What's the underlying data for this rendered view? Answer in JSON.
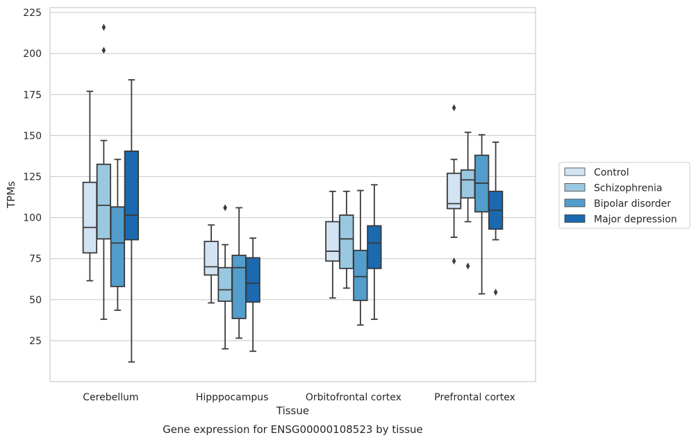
{
  "chart_data": {
    "type": "box",
    "title": "",
    "caption": "Gene expression for ENSG00000108523 by tissue",
    "xlabel": "Tissue",
    "ylabel": "TPMs",
    "ylim": [
      0,
      228
    ],
    "yticks": [
      25,
      50,
      75,
      100,
      125,
      150,
      175,
      200,
      225
    ],
    "grid": "horizontal",
    "legend_position": "right",
    "categories": [
      "Cerebellum",
      "Hipppocampus",
      "Orbitofrontal cortex",
      "Prefrontal cortex"
    ],
    "series": [
      {
        "name": "Control",
        "color": "#d2e3f3",
        "boxes": [
          {
            "whislo": 61.5,
            "q1": 78.5,
            "med": 94,
            "q3": 121.5,
            "whishi": 177,
            "fliers": []
          },
          {
            "whislo": 48,
            "q1": 65,
            "med": 70,
            "q3": 85.5,
            "whishi": 95.5,
            "fliers": []
          },
          {
            "whislo": 51,
            "q1": 73.5,
            "med": 79.5,
            "q3": 97.5,
            "whishi": 116,
            "fliers": []
          },
          {
            "whislo": 88,
            "q1": 105.5,
            "med": 108.5,
            "q3": 127,
            "whishi": 135.5,
            "fliers": [
              167,
              73.5
            ]
          }
        ]
      },
      {
        "name": "Schizophrenia",
        "color": "#9ac8e0",
        "boxes": [
          {
            "whislo": 38,
            "q1": 87,
            "med": 107.5,
            "q3": 132.5,
            "whishi": 147,
            "fliers": [
              216,
              202
            ]
          },
          {
            "whislo": 20,
            "q1": 49,
            "med": 56,
            "q3": 69.5,
            "whishi": 83.5,
            "fliers": [
              106
            ]
          },
          {
            "whislo": 57,
            "q1": 69,
            "med": 87,
            "q3": 101.5,
            "whishi": 116,
            "fliers": []
          },
          {
            "whislo": 97.5,
            "q1": 112,
            "med": 123,
            "q3": 129,
            "whishi": 152,
            "fliers": [
              70.5
            ]
          }
        ]
      },
      {
        "name": "Bipolar disorder",
        "color": "#529dcc",
        "boxes": [
          {
            "whislo": 43.5,
            "q1": 58,
            "med": 84.5,
            "q3": 106.5,
            "whishi": 135.5,
            "fliers": []
          },
          {
            "whislo": 26.5,
            "q1": 38.5,
            "med": 69.5,
            "q3": 77,
            "whishi": 106,
            "fliers": []
          },
          {
            "whislo": 34.5,
            "q1": 49.5,
            "med": 64,
            "q3": 80,
            "whishi": 116.5,
            "fliers": []
          },
          {
            "whislo": 53.5,
            "q1": 103.5,
            "med": 121,
            "q3": 138,
            "whishi": 150.5,
            "fliers": []
          }
        ]
      },
      {
        "name": "Major depression",
        "color": "#1b69af",
        "boxes": [
          {
            "whislo": 12,
            "q1": 86.5,
            "med": 101.5,
            "q3": 140.5,
            "whishi": 184,
            "fliers": []
          },
          {
            "whislo": 18.5,
            "q1": 48.5,
            "med": 60,
            "q3": 75.5,
            "whishi": 87.5,
            "fliers": []
          },
          {
            "whislo": 38,
            "q1": 69,
            "med": 84.5,
            "q3": 95,
            "whishi": 120,
            "fliers": []
          },
          {
            "whislo": 86.5,
            "q1": 93,
            "med": 104.5,
            "q3": 116,
            "whishi": 146,
            "fliers": [
              54.5
            ]
          }
        ]
      }
    ]
  }
}
